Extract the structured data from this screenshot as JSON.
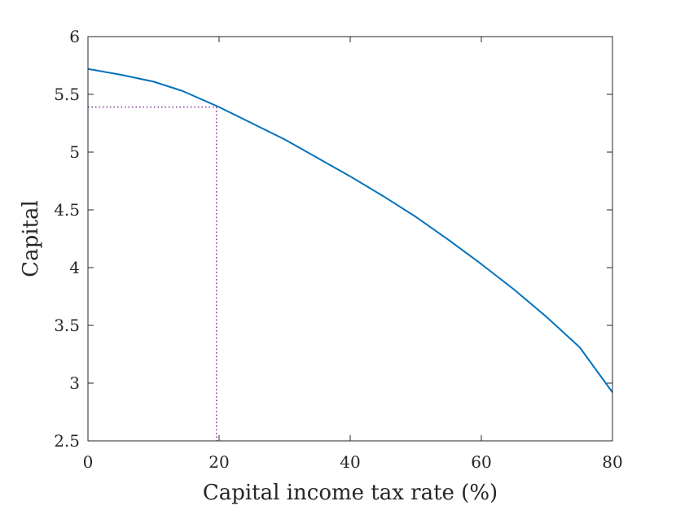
{
  "chart_data": {
    "type": "line",
    "title": "",
    "xlabel": "Capital income tax rate (%)",
    "ylabel": "Capital",
    "xlim": [
      0,
      80
    ],
    "ylim": [
      2.5,
      6
    ],
    "x_ticks": [
      0,
      20,
      40,
      60,
      80
    ],
    "y_ticks": [
      2.5,
      3,
      3.5,
      4,
      4.5,
      5,
      5.5,
      6
    ],
    "x_tick_labels": [
      "0",
      "20",
      "40",
      "60",
      "80"
    ],
    "y_tick_labels": [
      "2.5",
      "3",
      "3.5",
      "4",
      "4.5",
      "5",
      "5.5",
      "6"
    ],
    "grid": false,
    "series": [
      {
        "color": "#0072BD",
        "style": "solid",
        "x": [
          0,
          5,
          10,
          14.4,
          20,
          25,
          30,
          35,
          40,
          45,
          50,
          55,
          60,
          65,
          70,
          75,
          80
        ],
        "y": [
          5.72,
          5.67,
          5.61,
          5.53,
          5.39,
          5.25,
          5.11,
          4.95,
          4.79,
          4.62,
          4.44,
          4.24,
          4.03,
          3.81,
          3.57,
          3.31,
          2.92
        ]
      }
    ],
    "annotations": [
      {
        "kind": "dotted-guide",
        "color": "#7E2F8E",
        "x": 19.6,
        "y": 5.39
      }
    ]
  }
}
